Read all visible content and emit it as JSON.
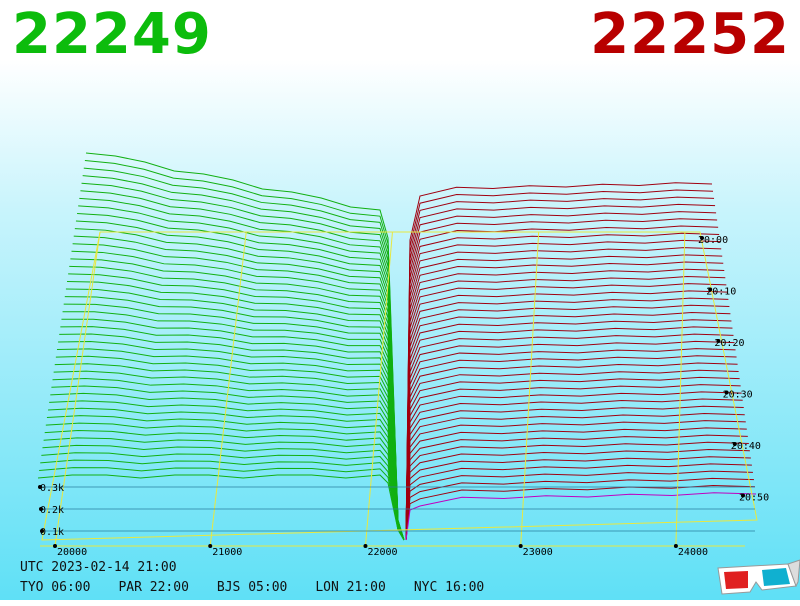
{
  "bid_price": "22249",
  "ask_price": "22252",
  "price_axis": {
    "xlim": [
      20000,
      24400
    ],
    "ticks": [
      20000,
      21000,
      22000,
      23000,
      24000
    ]
  },
  "depth_axis": {
    "ylim": [
      0,
      300
    ],
    "ticks": [
      {
        "value": 100,
        "label": "0.1k"
      },
      {
        "value": 200,
        "label": "0.2k"
      },
      {
        "value": 300,
        "label": "0.3k"
      }
    ]
  },
  "time_axis": {
    "ticks": [
      "20:00",
      "20:10",
      "20:20",
      "20:30",
      "20:40",
      "20:50"
    ]
  },
  "clock": {
    "utc": "UTC 2023-02-14 21:00",
    "zones": [
      "TYO 06:00",
      "PAR 22:00",
      "BJS 05:00",
      "LON 21:00",
      "NYC 16:00"
    ]
  }
}
